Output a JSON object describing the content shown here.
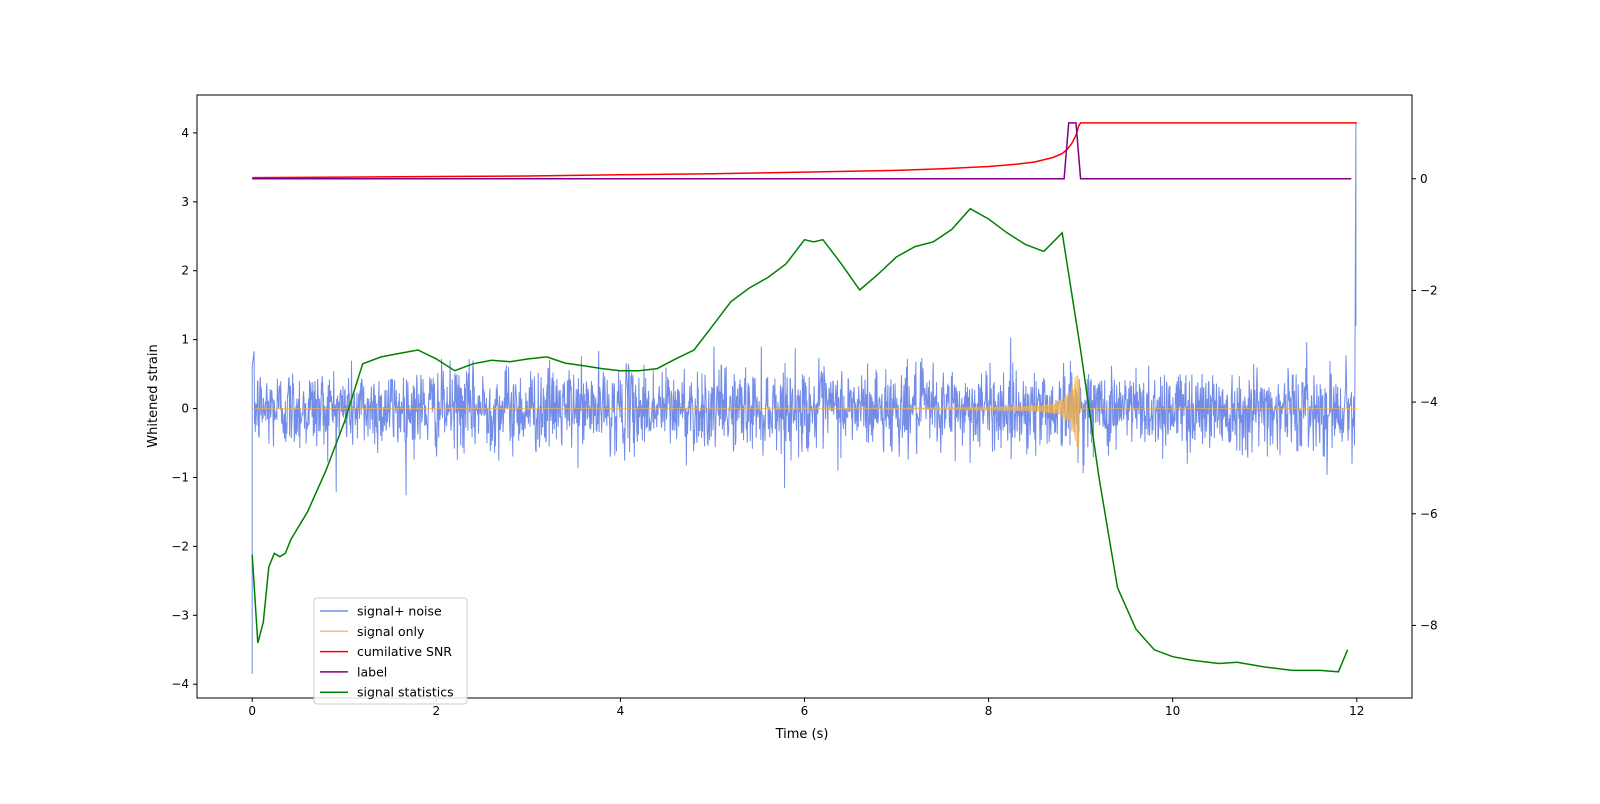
{
  "chart_data": {
    "type": "line",
    "title": "",
    "xlabel": "Time (s)",
    "ylabel": "Whitened strain",
    "y2label": "",
    "xlim": [
      -0.6,
      12.6
    ],
    "ylim": [
      -4.2,
      4.55
    ],
    "y2lim": [
      -9.3,
      1.5
    ],
    "grid": false,
    "legend_position": "lower-left",
    "x_ticks": [
      0,
      2,
      4,
      6,
      8,
      10,
      12
    ],
    "x_tick_labels": [
      "0",
      "2",
      "4",
      "6",
      "8",
      "10",
      "12"
    ],
    "y_ticks": [
      -4,
      -3,
      -2,
      -1,
      0,
      1,
      2,
      3,
      4
    ],
    "y_tick_labels": [
      "−4",
      "−3",
      "−2",
      "−1",
      "0",
      "1",
      "2",
      "3",
      "4"
    ],
    "y2_ticks": [
      -8,
      -6,
      -4,
      -2,
      0
    ],
    "y2_tick_labels": [
      "−8",
      "−6",
      "−4",
      "−2",
      "0"
    ],
    "series": [
      {
        "name": "signal+ noise",
        "color": "#6b86e6",
        "axis": "left",
        "style": "dense white-noise band, typical amplitude about ±0.6, peaks near ±1.25, from t=0 to t=12",
        "notable_points": [
          [
            0.0,
            -3.85
          ],
          [
            0.0,
            0.6
          ],
          [
            11.99,
            4.15
          ],
          [
            11.99,
            1.2
          ]
        ]
      },
      {
        "name": "signal only",
        "color": "#f5b041",
        "axis": "left",
        "style": "chirp oscillation growing toward merger",
        "x": [
          0,
          6,
          7,
          8,
          8.5,
          8.7,
          8.8,
          8.85,
          8.9,
          8.95,
          8.98,
          9.0,
          12
        ],
        "envelope": [
          0.0,
          0.005,
          0.008,
          0.02,
          0.04,
          0.08,
          0.14,
          0.2,
          0.32,
          0.5,
          0.7,
          0.0,
          0.0
        ]
      },
      {
        "name": "cumilative SNR",
        "color": "#ff0000",
        "axis": "right",
        "x": [
          0,
          1,
          2,
          3,
          4,
          5,
          6,
          7,
          7.5,
          8,
          8.3,
          8.5,
          8.7,
          8.8,
          8.85,
          8.9,
          8.95,
          8.98,
          9.0,
          9.5,
          10,
          11,
          12
        ],
        "values": [
          0.02,
          0.03,
          0.04,
          0.05,
          0.07,
          0.09,
          0.12,
          0.15,
          0.18,
          0.22,
          0.26,
          0.3,
          0.38,
          0.45,
          0.52,
          0.62,
          0.78,
          0.95,
          1.0,
          1.0,
          1.0,
          1.0,
          1.0
        ]
      },
      {
        "name": "label",
        "color": "#800080",
        "axis": "right",
        "x": [
          0,
          8.82,
          8.87,
          8.95,
          9.0,
          11.94
        ],
        "values": [
          0.0,
          0.0,
          1.0,
          1.0,
          0.0,
          0.0
        ]
      },
      {
        "name": "signal statistics",
        "color": "#008000",
        "axis": "left",
        "x": [
          0,
          0.06,
          0.12,
          0.18,
          0.24,
          0.3,
          0.36,
          0.42,
          0.6,
          0.8,
          1.0,
          1.2,
          1.4,
          1.6,
          1.8,
          2.0,
          2.2,
          2.4,
          2.6,
          2.8,
          3.0,
          3.2,
          3.4,
          3.6,
          3.8,
          4.0,
          4.2,
          4.4,
          4.6,
          4.8,
          5.0,
          5.2,
          5.4,
          5.6,
          5.8,
          6.0,
          6.1,
          6.2,
          6.4,
          6.6,
          6.8,
          7.0,
          7.2,
          7.4,
          7.6,
          7.8,
          8.0,
          8.2,
          8.4,
          8.6,
          8.8,
          8.9,
          9.0,
          9.2,
          9.4,
          9.6,
          9.8,
          10.0,
          10.2,
          10.5,
          10.7,
          11.0,
          11.3,
          11.6,
          11.8,
          11.9
        ],
        "values": [
          -2.12,
          -3.4,
          -3.1,
          -2.3,
          -2.1,
          -2.15,
          -2.1,
          -1.9,
          -1.5,
          -0.9,
          -0.2,
          0.65,
          0.75,
          0.8,
          0.85,
          0.72,
          0.55,
          0.65,
          0.7,
          0.68,
          0.72,
          0.75,
          0.66,
          0.62,
          0.58,
          0.55,
          0.55,
          0.58,
          0.72,
          0.85,
          1.2,
          1.55,
          1.75,
          1.9,
          2.1,
          2.45,
          2.42,
          2.45,
          2.1,
          1.72,
          1.95,
          2.2,
          2.35,
          2.42,
          2.6,
          2.9,
          2.75,
          2.55,
          2.38,
          2.28,
          2.55,
          1.7,
          0.85,
          -1.0,
          -2.6,
          -3.2,
          -3.5,
          -3.6,
          -3.65,
          -3.7,
          -3.68,
          -3.75,
          -3.8,
          -3.8,
          -3.82,
          -3.5
        ]
      }
    ]
  }
}
